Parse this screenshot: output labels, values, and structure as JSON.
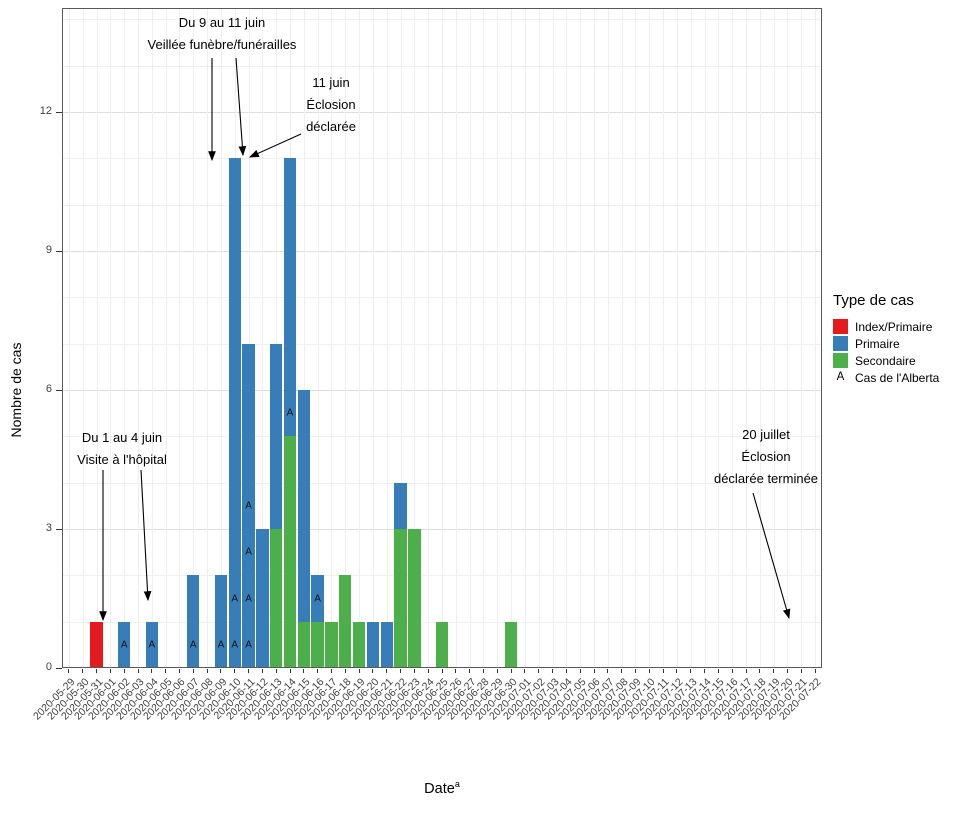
{
  "chart_data": {
    "type": "bar",
    "stacked": true,
    "title": "",
    "xlabel": "Date",
    "xlabel_sup": "a",
    "ylabel": "Nombre de cas",
    "ylim": [
      0,
      14
    ],
    "y_ticks": [
      0,
      3,
      6,
      9,
      12
    ],
    "grid": true,
    "legend_position": "right",
    "x_dates": [
      "2020-05-29",
      "2020-05-30",
      "2020-05-31",
      "2020-06-01",
      "2020-06-02",
      "2020-06-03",
      "2020-06-04",
      "2020-06-05",
      "2020-06-06",
      "2020-06-07",
      "2020-06-08",
      "2020-06-09",
      "2020-06-10",
      "2020-06-11",
      "2020-06-12",
      "2020-06-13",
      "2020-06-14",
      "2020-06-15",
      "2020-06-16",
      "2020-06-17",
      "2020-06-18",
      "2020-06-19",
      "2020-06-20",
      "2020-06-21",
      "2020-06-22",
      "2020-06-23",
      "2020-06-24",
      "2020-06-25",
      "2020-06-26",
      "2020-06-27",
      "2020-06-28",
      "2020-06-29",
      "2020-06-30",
      "2020-07-01",
      "2020-07-02",
      "2020-07-03",
      "2020-07-04",
      "2020-07-05",
      "2020-07-06",
      "2020-07-07",
      "2020-07-08",
      "2020-07-09",
      "2020-07-10",
      "2020-07-11",
      "2020-07-12",
      "2020-07-13",
      "2020-07-14",
      "2020-07-15",
      "2020-07-16",
      "2020-07-17",
      "2020-07-18",
      "2020-07-19",
      "2020-07-20",
      "2020-07-21",
      "2020-07-22"
    ],
    "series_colors": {
      "index": "#E41A1C",
      "primaire": "#377EB8",
      "secondaire": "#4DAF4A"
    },
    "alberta_marker": "A",
    "bars": [
      {
        "date": "2020-05-31",
        "segments": [
          {
            "type": "index",
            "count": 1
          }
        ],
        "alberta_labels": []
      },
      {
        "date": "2020-06-02",
        "segments": [
          {
            "type": "primaire",
            "count": 1
          }
        ],
        "alberta_labels": [
          0.5
        ]
      },
      {
        "date": "2020-06-04",
        "segments": [
          {
            "type": "primaire",
            "count": 1
          }
        ],
        "alberta_labels": [
          0.5
        ]
      },
      {
        "date": "2020-06-07",
        "segments": [
          {
            "type": "primaire",
            "count": 2
          }
        ],
        "alberta_labels": [
          0.5
        ]
      },
      {
        "date": "2020-06-09",
        "segments": [
          {
            "type": "primaire",
            "count": 2
          }
        ],
        "alberta_labels": [
          0.5
        ]
      },
      {
        "date": "2020-06-10",
        "segments": [
          {
            "type": "primaire",
            "count": 11
          }
        ],
        "alberta_labels": [
          0.5,
          1.5
        ]
      },
      {
        "date": "2020-06-11",
        "segments": [
          {
            "type": "primaire",
            "count": 7
          }
        ],
        "alberta_labels": [
          0.5,
          1.5,
          2.5,
          3.5
        ]
      },
      {
        "date": "2020-06-12",
        "segments": [
          {
            "type": "primaire",
            "count": 3
          }
        ],
        "alberta_labels": []
      },
      {
        "date": "2020-06-13",
        "segments": [
          {
            "type": "secondaire",
            "count": 3
          },
          {
            "type": "primaire",
            "count": 4
          }
        ],
        "alberta_labels": []
      },
      {
        "date": "2020-06-14",
        "segments": [
          {
            "type": "secondaire",
            "count": 5
          },
          {
            "type": "primaire",
            "count": 6
          }
        ],
        "alberta_labels": [
          5.5
        ]
      },
      {
        "date": "2020-06-15",
        "segments": [
          {
            "type": "secondaire",
            "count": 1
          },
          {
            "type": "primaire",
            "count": 5
          }
        ],
        "alberta_labels": []
      },
      {
        "date": "2020-06-16",
        "segments": [
          {
            "type": "secondaire",
            "count": 1
          },
          {
            "type": "primaire",
            "count": 1
          }
        ],
        "alberta_labels": [
          1.5
        ]
      },
      {
        "date": "2020-06-17",
        "segments": [
          {
            "type": "secondaire",
            "count": 1
          }
        ],
        "alberta_labels": []
      },
      {
        "date": "2020-06-18",
        "segments": [
          {
            "type": "secondaire",
            "count": 2
          }
        ],
        "alberta_labels": []
      },
      {
        "date": "2020-06-19",
        "segments": [
          {
            "type": "secondaire",
            "count": 1
          }
        ],
        "alberta_labels": []
      },
      {
        "date": "2020-06-20",
        "segments": [
          {
            "type": "primaire",
            "count": 1
          }
        ],
        "alberta_labels": []
      },
      {
        "date": "2020-06-21",
        "segments": [
          {
            "type": "primaire",
            "count": 1
          }
        ],
        "alberta_labels": []
      },
      {
        "date": "2020-06-22",
        "segments": [
          {
            "type": "secondaire",
            "count": 3
          },
          {
            "type": "primaire",
            "count": 1
          }
        ],
        "alberta_labels": []
      },
      {
        "date": "2020-06-23",
        "segments": [
          {
            "type": "secondaire",
            "count": 3
          }
        ],
        "alberta_labels": []
      },
      {
        "date": "2020-06-25",
        "segments": [
          {
            "type": "secondaire",
            "count": 1
          }
        ],
        "alberta_labels": []
      },
      {
        "date": "2020-06-30",
        "segments": [
          {
            "type": "secondaire",
            "count": 1
          }
        ],
        "alberta_labels": []
      }
    ],
    "legend": {
      "title": "Type de cas",
      "items": [
        {
          "key": "index",
          "swatch": "#E41A1C",
          "label": "Index/Primaire"
        },
        {
          "key": "primaire",
          "swatch": "#377EB8",
          "label": "Primaire"
        },
        {
          "key": "secondaire",
          "swatch": "#4DAF4A",
          "label": "Secondaire"
        },
        {
          "key": "alberta",
          "glyph": "A",
          "label": "Cas de l'Alberta"
        }
      ]
    },
    "annotations": [
      {
        "id": "funeral",
        "lines": [
          "Du 9 au 11 juin",
          "Veillée funèbre/funérailles"
        ]
      },
      {
        "id": "declared",
        "lines": [
          "11 juin",
          "Éclosion",
          "déclarée"
        ]
      },
      {
        "id": "hospital",
        "lines": [
          "Du 1 au 4 juin",
          "Visite à l'hôpital"
        ]
      },
      {
        "id": "ended",
        "lines": [
          "20 juillet",
          "Éclosion",
          "déclarée terminée"
        ]
      }
    ]
  }
}
